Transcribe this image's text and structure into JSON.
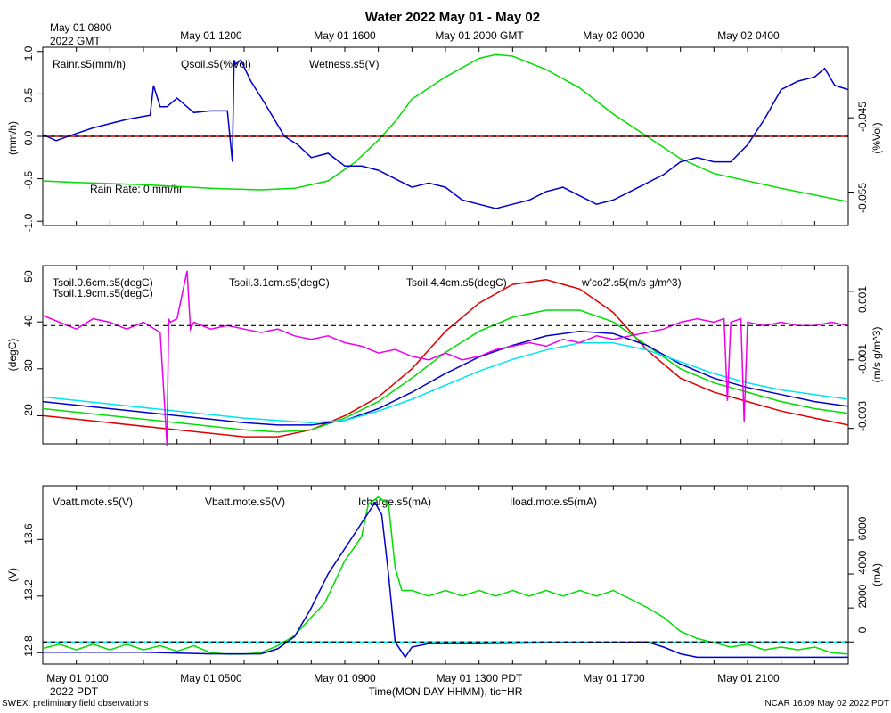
{
  "chart_data": {
    "type": "line",
    "title": "Water 2022 May 01 - May 02",
    "top_axis": {
      "labels": [
        "May 01 1200",
        "May 01 1600",
        "May 01 2000 GMT",
        "May 02 0000",
        "May 02 0400"
      ],
      "corner_line1": "May 01 0800",
      "corner_line2": "2022 GMT"
    },
    "bottom_axis": {
      "labels": [
        "May 01 0100",
        "May 01 0500",
        "May 01 0900",
        "May 01 1300 PDT",
        "May 01 1700",
        "May 01 2100"
      ],
      "corner_label": "2022 PDT",
      "xlabel": "Time(MON DAY HHMM), tic=HR"
    },
    "x_range_hours": [
      0,
      24
    ],
    "footer_left": "SWEX: preliminary field observations",
    "footer_right": "NCAR 16:09 May 02 2022 PDT",
    "panels": [
      {
        "name": "water",
        "ylabel_left": "(mm/h)",
        "ylabel_right": "(%Vol)",
        "ylim_left": [
          -1.05,
          1.05
        ],
        "ylim_right": [
          -0.0595,
          -0.0355
        ],
        "left_ticks": [
          "-1.0",
          "-0.5",
          "0.0",
          "0.5",
          "1.0"
        ],
        "right_ticks": [
          "-0.055",
          "-0.045"
        ],
        "legend": [
          {
            "label": "Rainr.s5(mm/h)",
            "color": "#e00000"
          },
          {
            "label": "Qsoil.s5(%Vol)",
            "color": "#00dd00"
          },
          {
            "label": "Wetness.s5(V)",
            "color": "#0000cc"
          }
        ],
        "annotation": "Rain Rate: 0 mm/hr",
        "series": [
          {
            "name": "Rainr.s5",
            "color": "#e00000",
            "axis": "left",
            "x": [
              0,
              24
            ],
            "y": [
              0,
              0
            ]
          },
          {
            "name": "Qsoil.s5",
            "color": "#00dd00",
            "axis": "right",
            "x": [
              0,
              1,
              3,
              5,
              6.5,
              7.5,
              8.5,
              9.3,
              10,
              10.5,
              11,
              12,
              13,
              13.5,
              14,
              15,
              16,
              17,
              18,
              19,
              20,
              22,
              24
            ],
            "y": [
              -0.0535,
              -0.0537,
              -0.054,
              -0.0545,
              -0.0547,
              -0.0545,
              -0.0535,
              -0.051,
              -0.048,
              -0.0455,
              -0.0425,
              -0.0395,
              -0.037,
              -0.0365,
              -0.0367,
              -0.0385,
              -0.041,
              -0.0445,
              -0.0475,
              -0.0505,
              -0.0525,
              -0.0545,
              -0.0563
            ]
          },
          {
            "name": "Wetness.s5",
            "color": "#0000cc",
            "axis": "left",
            "x": [
              0,
              0.4,
              0.9,
              1.5,
              2.5,
              3.2,
              3.3,
              3.5,
              3.7,
              4,
              4.5,
              5,
              5.5,
              5.65,
              5.7,
              5.75,
              5.9,
              6.2,
              6.6,
              7.2,
              7.6,
              8,
              8.5,
              9,
              9.5,
              10,
              10.5,
              11,
              11.5,
              12,
              12.5,
              13,
              13.5,
              14,
              14.5,
              15,
              15.5,
              16,
              16.5,
              17,
              17.5,
              18,
              18.5,
              19,
              19.5,
              20,
              20.5,
              21,
              21.5,
              22,
              22.5,
              23,
              23.3,
              23.6,
              24
            ],
            "y": [
              0.02,
              -0.05,
              0.02,
              0.1,
              0.2,
              0.25,
              0.6,
              0.35,
              0.35,
              0.45,
              0.28,
              0.3,
              0.3,
              -0.3,
              0.9,
              0.85,
              0.9,
              0.65,
              0.4,
              0.0,
              -0.1,
              -0.25,
              -0.2,
              -0.35,
              -0.35,
              -0.4,
              -0.5,
              -0.6,
              -0.55,
              -0.6,
              -0.75,
              -0.8,
              -0.85,
              -0.8,
              -0.75,
              -0.65,
              -0.6,
              -0.7,
              -0.8,
              -0.75,
              -0.65,
              -0.55,
              -0.45,
              -0.3,
              -0.25,
              -0.3,
              -0.3,
              -0.1,
              0.2,
              0.55,
              0.65,
              0.7,
              0.8,
              0.6,
              0.55
            ]
          }
        ]
      },
      {
        "name": "soil_temperature",
        "ylabel_left": "(degC)",
        "ylabel_right": "(m/s g/m^3)",
        "ylim_left": [
          14,
          52
        ],
        "ylim_right": [
          -0.00345,
          0.00175
        ],
        "left_ticks": [
          "20",
          "30",
          "40",
          "50"
        ],
        "right_ticks": [
          "-0.003",
          "-0.001",
          "0.001"
        ],
        "legend": [
          {
            "label": "Tsoil.0.6cm.s5(degC)",
            "color": "#e00000"
          },
          {
            "label": "Tsoil.1.9cm.s5(degC)",
            "color": "#00dd00"
          },
          {
            "label": "Tsoil.3.1cm.s5(degC)",
            "color": "#0000cc"
          },
          {
            "label": "Tsoil.4.4cm.s5(degC)",
            "color": "#00e5ee"
          },
          {
            "label": "w'co2'.s5(m/s g/m^3)",
            "color": "#ee00ee"
          }
        ],
        "series": [
          {
            "name": "Tsoil.0.6cm.s5",
            "color": "#e00000",
            "axis": "left",
            "x": [
              0,
              2,
              4,
              6,
              7,
              8,
              9,
              10,
              11,
              12,
              13,
              14,
              15,
              16,
              17,
              18,
              19,
              20,
              21,
              22,
              23,
              24
            ],
            "y": [
              20,
              18.5,
              17,
              15.5,
              15.5,
              17,
              20,
              24,
              30,
              38,
              44,
              48,
              49,
              47,
              42,
              34,
              28,
              25,
              23,
              21,
              19.5,
              18
            ]
          },
          {
            "name": "Tsoil.1.9cm.s5",
            "color": "#00dd00",
            "axis": "left",
            "x": [
              0,
              2,
              4,
              6,
              7,
              8,
              9,
              10,
              11,
              12,
              13,
              14,
              15,
              16,
              17,
              18,
              19,
              20,
              21,
              22,
              23,
              24
            ],
            "y": [
              21.5,
              20,
              18.5,
              17,
              16.5,
              17,
              19.5,
              23,
              28,
              33.5,
              38,
              41,
              42.5,
              42.5,
              40,
              35,
              30,
              27,
              25,
              23,
              21.5,
              20.5
            ]
          },
          {
            "name": "Tsoil.3.1cm.s5",
            "color": "#0000cc",
            "axis": "left",
            "x": [
              0,
              2,
              4,
              6,
              7,
              8,
              9,
              10,
              11,
              12,
              13,
              14,
              15,
              16,
              17,
              18,
              19,
              20,
              21,
              22,
              23,
              24
            ],
            "y": [
              23,
              21.5,
              20,
              18.5,
              18,
              18,
              19,
              21.5,
              25,
              29,
              32.5,
              35,
              37,
              38,
              37.5,
              35,
              31,
              28,
              26,
              24.5,
              23,
              22
            ]
          },
          {
            "name": "Tsoil.4.4cm.s5",
            "color": "#00e5ee",
            "axis": "left",
            "x": [
              0,
              2,
              4,
              6,
              7,
              8,
              9,
              10,
              11,
              12,
              13,
              14,
              15,
              16,
              17,
              18,
              19,
              20,
              21,
              22,
              23,
              24
            ],
            "y": [
              24,
              22.5,
              21,
              19.5,
              19,
              18.5,
              19,
              21,
              23.5,
              26.5,
              29.5,
              32,
              34,
              35.5,
              35.5,
              34,
              31.5,
              29,
              27,
              25.5,
              24.5,
              23.5
            ]
          },
          {
            "name": "w'co2'.s5",
            "color": "#ee00ee",
            "axis": "right",
            "x": [
              0,
              0.5,
              1,
              1.5,
              2,
              2.5,
              3,
              3.5,
              3.7,
              3.75,
              3.8,
              4,
              4.3,
              4.4,
              4.5,
              5,
              5.5,
              6,
              6.5,
              7,
              7.5,
              8,
              8.5,
              9,
              9.5,
              10,
              10.5,
              11,
              11.5,
              12,
              12.5,
              13,
              13.5,
              14,
              14.5,
              15,
              15.5,
              16,
              16.5,
              17,
              17.5,
              18,
              18.5,
              19,
              19.5,
              20,
              20.3,
              20.4,
              20.5,
              20.8,
              20.9,
              21,
              21.5,
              22,
              22.5,
              23,
              23.5,
              24
            ],
            "y": [
              0.0003,
              0.0001,
              -0.0001,
              0.0002,
              0.0001,
              -0.0001,
              0.0001,
              -0.0002,
              -0.0035,
              0.0002,
              0.0001,
              0.0002,
              0.0016,
              -0.0001,
              0.0001,
              -0.0001,
              0.0,
              -0.0001,
              -0.0002,
              -0.0001,
              -0.0003,
              -0.0004,
              -0.0003,
              -0.0005,
              -0.0006,
              -0.0008,
              -0.0007,
              -0.0009,
              -0.001,
              -0.0008,
              -0.001,
              -0.0009,
              -0.0007,
              -0.0006,
              -0.0005,
              -0.0006,
              -0.0004,
              -0.0005,
              -0.0003,
              -0.0004,
              -0.0003,
              -0.0002,
              -0.0001,
              0.0001,
              0.0002,
              0.0001,
              0.0002,
              -0.0022,
              0.0001,
              0.0002,
              -0.0028,
              0.0001,
              0.0,
              0.0001,
              0.0,
              0.0,
              0.0001,
              0.0
            ]
          }
        ]
      },
      {
        "name": "power",
        "ylabel_left": "(V)",
        "ylabel_right": "(mA)",
        "ylim_left": [
          12.72,
          13.98
        ],
        "ylim_right": [
          -1300,
          9200
        ],
        "left_ticks": [
          "12.8",
          "13.2",
          "13.6"
        ],
        "right_ticks": [
          "0",
          "2000",
          "4000",
          "6000"
        ],
        "legend": [
          {
            "label": "Vbatt.mote.s5(V)",
            "color": "#e00000"
          },
          {
            "label": "Vbatt.mote.s5(V)",
            "color": "#00dd00"
          },
          {
            "label": "Icharge.s5(mA)",
            "color": "#0000cc"
          },
          {
            "label": "Iload.mote.s5(mA)",
            "color": "#00e5ee"
          }
        ],
        "series": [
          {
            "name": "Iload.mote.s5",
            "color": "#00e5ee",
            "axis": "right",
            "x": [
              0,
              24
            ],
            "y": [
              0,
              0
            ]
          },
          {
            "name": "Vbatt.mote.s5",
            "color": "#00dd00",
            "axis": "left",
            "x": [
              0,
              0.5,
              1,
              1.5,
              2,
              2.5,
              3,
              3.5,
              4,
              4.5,
              5,
              5.5,
              6,
              6.5,
              7,
              7.5,
              8,
              8.4,
              8.7,
              9,
              9.3,
              9.5,
              9.7,
              10,
              10.3,
              10.5,
              10.7,
              11,
              11.5,
              12,
              12.5,
              13,
              13.5,
              14,
              14.5,
              15,
              15.5,
              16,
              16.5,
              17,
              17.5,
              18,
              18.5,
              19,
              19.5,
              20,
              20.5,
              21,
              21.5,
              22,
              22.5,
              23,
              23.5,
              24
            ],
            "y": [
              12.83,
              12.86,
              12.82,
              12.86,
              12.82,
              12.86,
              12.82,
              12.85,
              12.81,
              12.85,
              12.8,
              12.79,
              12.79,
              12.8,
              12.85,
              12.92,
              13.05,
              13.15,
              13.3,
              13.45,
              13.55,
              13.62,
              13.85,
              13.9,
              13.85,
              13.4,
              13.24,
              13.24,
              13.2,
              13.24,
              13.2,
              13.24,
              13.2,
              13.24,
              13.2,
              13.24,
              13.2,
              13.24,
              13.2,
              13.24,
              13.18,
              13.12,
              13.05,
              12.95,
              12.9,
              12.87,
              12.84,
              12.86,
              12.82,
              12.84,
              12.82,
              12.84,
              12.8,
              12.79
            ]
          },
          {
            "name": "Icharge.s5",
            "color": "#0000cc",
            "axis": "right",
            "x": [
              0,
              3,
              5,
              6.5,
              7,
              7.5,
              8,
              8.5,
              9,
              9.5,
              9.9,
              10.1,
              10.3,
              10.5,
              10.8,
              11,
              11.5,
              13,
              15,
              17,
              18,
              18.5,
              19,
              19.5,
              20,
              22,
              24
            ],
            "y": [
              -600,
              -600,
              -700,
              -700,
              -400,
              300,
              2000,
              4000,
              5500,
              7000,
              8200,
              7500,
              4000,
              0,
              -900,
              -300,
              -100,
              -100,
              -50,
              -50,
              0,
              -300,
              -700,
              -900,
              -900,
              -900,
              -900
            ]
          }
        ]
      }
    ]
  }
}
